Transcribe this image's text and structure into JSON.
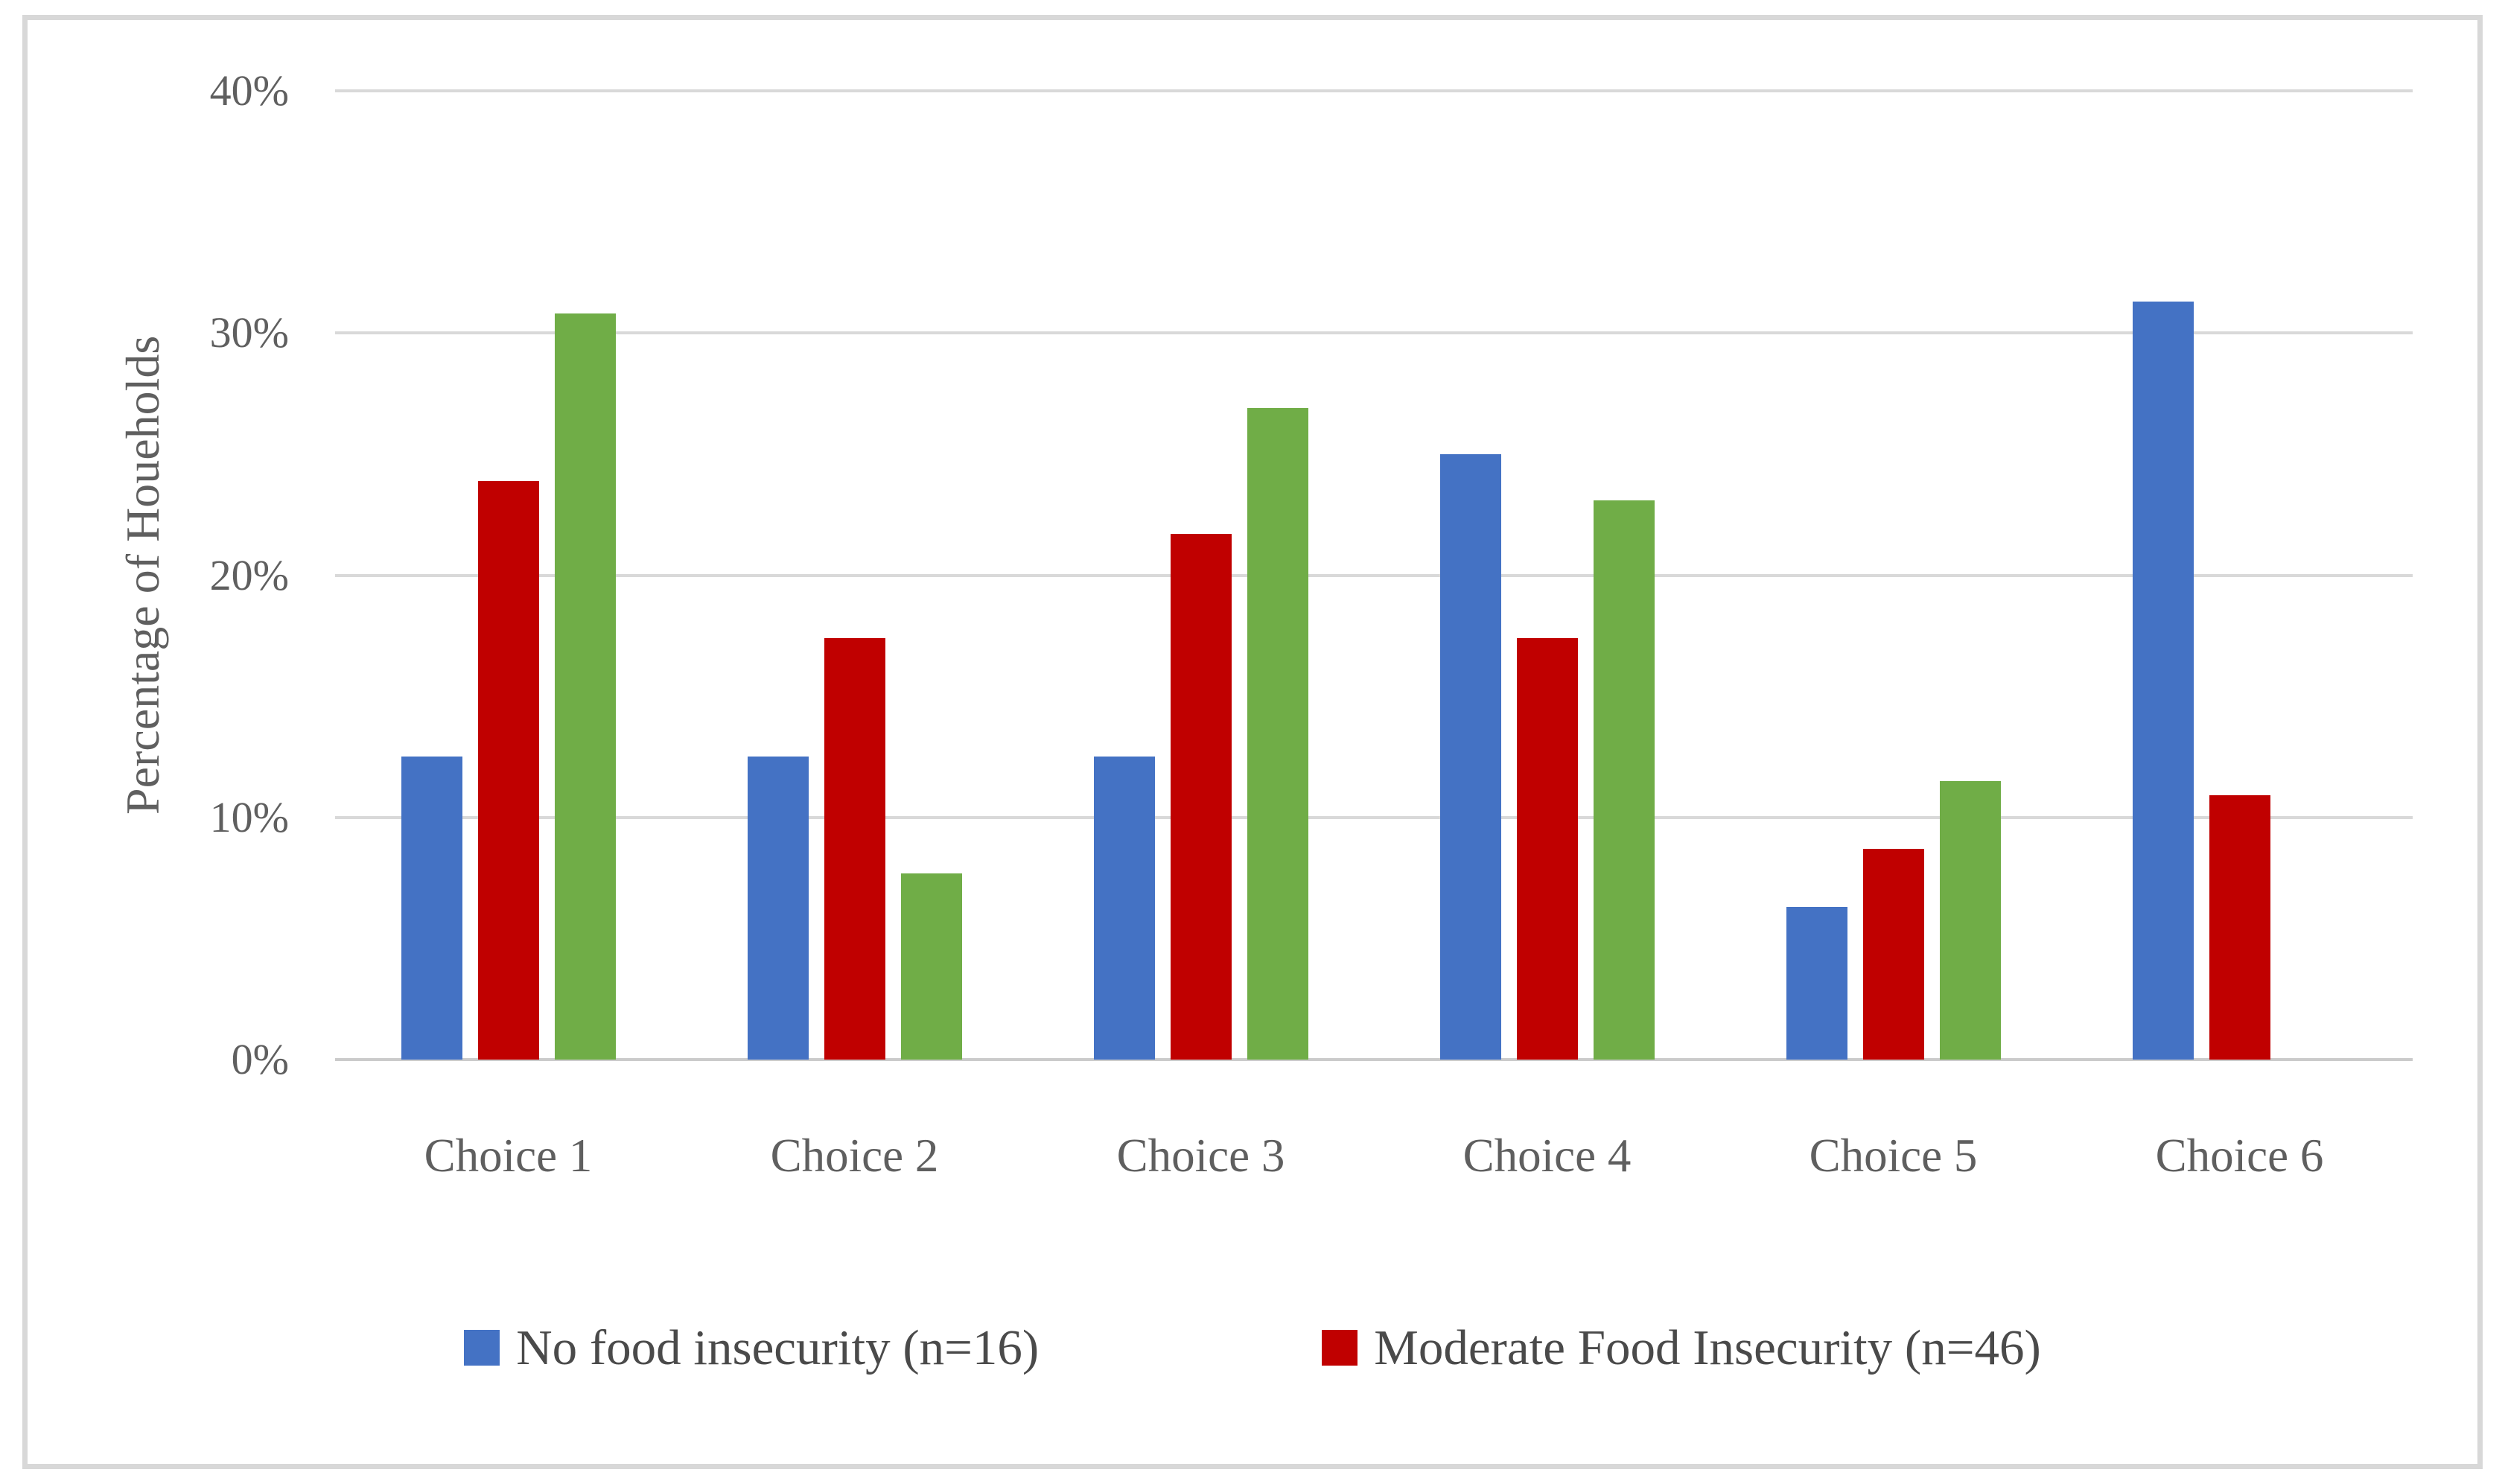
{
  "chart_data": {
    "type": "bar",
    "categories": [
      "Choice 1",
      "Choice 2",
      "Choice 3",
      "Choice 4",
      "Choice 5",
      "Choice 6"
    ],
    "series": [
      {
        "name": "No food insecurity (n=16)",
        "color": "#4472C4",
        "in_legend": true,
        "values": [
          12.5,
          12.5,
          12.5,
          25.0,
          6.3,
          31.3
        ]
      },
      {
        "name": "Moderate Food Insecurity (n=46)",
        "color": "#C00000",
        "in_legend": true,
        "values": [
          23.9,
          17.4,
          21.7,
          17.4,
          8.7,
          10.9
        ]
      },
      {
        "name": "",
        "color": "#70AD47",
        "in_legend": false,
        "values": [
          30.8,
          7.7,
          26.9,
          23.1,
          11.5,
          0
        ]
      }
    ],
    "ylabel": "Percentage of Houeholds",
    "xlabel": "",
    "ylim": [
      0,
      40
    ],
    "yticks": [
      "0%",
      "10%",
      "20%",
      "30%",
      "40%"
    ],
    "ytick_values": [
      0,
      10,
      20,
      30,
      40
    ],
    "grid": true,
    "legend_position": "bottom",
    "legend_entries": [
      {
        "label": "No food insecurity (n=16)",
        "color": "#4472C4"
      },
      {
        "label": "Moderate Food Insecurity (n=46)",
        "color": "#C00000"
      }
    ],
    "colors": {
      "gridline": "#D9D9D9",
      "frame_border": "#D8D8D8",
      "axis_text": "#5F5F5F",
      "legend_text": "#4A4A4A",
      "background": "#FFFFFF"
    }
  }
}
